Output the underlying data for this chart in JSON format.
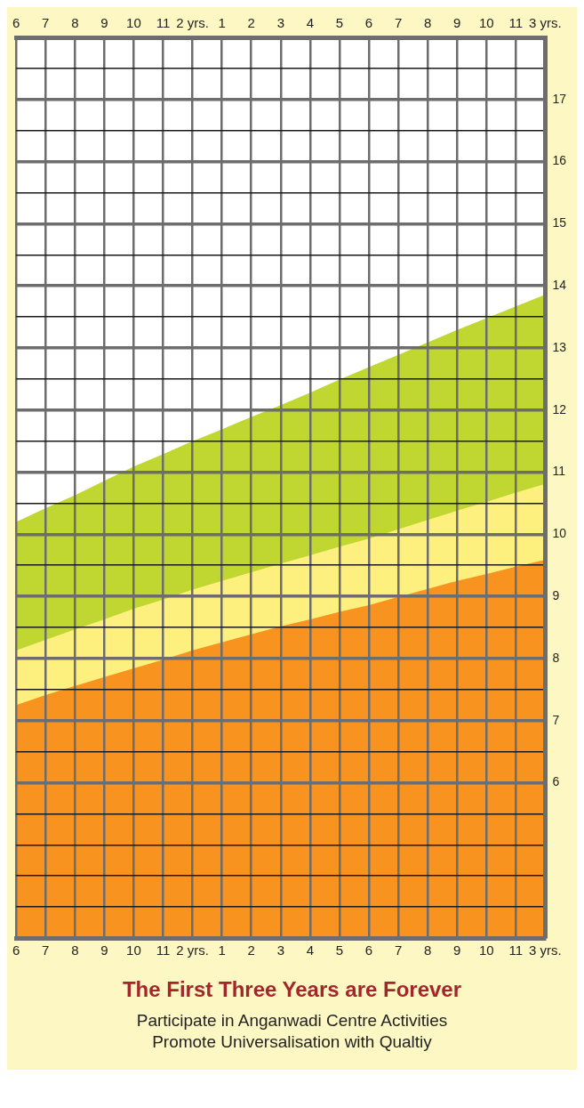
{
  "chart_data": {
    "type": "area",
    "title": "The First Three Years are Forever",
    "annotations": [
      "Participate in Anganwadi Centre Activities",
      "Promote Universalisation with Qualtiy"
    ],
    "categories": [
      "6",
      "7",
      "8",
      "9",
      "10",
      "11",
      "2 yrs.",
      "1",
      "2",
      "3",
      "4",
      "5",
      "6",
      "7",
      "8",
      "9",
      "10",
      "11",
      "3 yrs."
    ],
    "series": [
      {
        "color": "#f7931e",
        "values": [
          7.25,
          7.41,
          7.56,
          7.7,
          7.84,
          7.98,
          8.13,
          8.26,
          8.39,
          8.52,
          8.63,
          8.75,
          8.86,
          8.99,
          9.12,
          9.25,
          9.36,
          9.48,
          9.59
        ]
      },
      {
        "color": "#fdf07f",
        "values": [
          8.13,
          8.3,
          8.47,
          8.63,
          8.8,
          8.95,
          9.11,
          9.25,
          9.39,
          9.53,
          9.66,
          9.8,
          9.93,
          10.08,
          10.23,
          10.38,
          10.52,
          10.67,
          10.81
        ]
      },
      {
        "color": "#bfd730",
        "values": [
          10.2,
          10.42,
          10.63,
          10.86,
          11.09,
          11.29,
          11.5,
          11.69,
          11.89,
          12.08,
          12.28,
          12.49,
          12.69,
          12.89,
          13.09,
          13.29,
          13.48,
          13.67,
          13.86
        ]
      }
    ],
    "ylim": [
      3.5,
      18
    ],
    "yticks": [
      {
        "value": 4,
        "label": null
      },
      {
        "value": 4.5,
        "label": null
      },
      {
        "value": 5,
        "label": null
      },
      {
        "value": 5.5,
        "label": null
      },
      6,
      {
        "value": 6.5,
        "label": null
      },
      7,
      {
        "value": 7.5,
        "label": null
      },
      8,
      {
        "value": 8.5,
        "label": null
      },
      9,
      {
        "value": 9.5,
        "label": null
      },
      10,
      {
        "value": 10.5,
        "label": null
      },
      11,
      {
        "value": 11.5,
        "label": null
      },
      12,
      {
        "value": 12.5,
        "label": null
      },
      13,
      {
        "value": 13.5,
        "label": null
      },
      14,
      {
        "value": 14.5,
        "label": null
      },
      15,
      {
        "value": 15.5,
        "label": null
      },
      16,
      {
        "value": 16.5,
        "label": null
      },
      17,
      {
        "value": 17.5,
        "label": null
      }
    ],
    "grid": true,
    "legend": false
  }
}
